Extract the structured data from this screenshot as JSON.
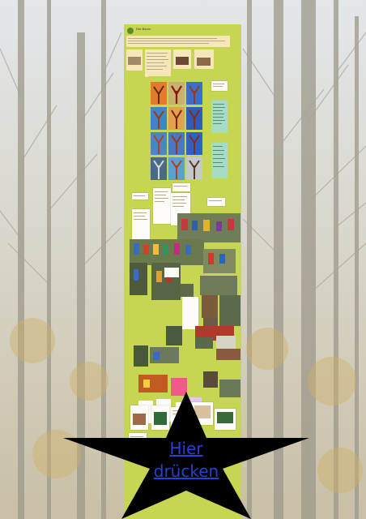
{
  "header": {
    "title": "Der Baum",
    "subtitle": ""
  },
  "cta": {
    "label": "Hier drücken"
  },
  "colors": {
    "padlet_bg": "#c7d652",
    "note_bg": "#f7e6b8",
    "cta_text": "#2a3fd8",
    "star": "#000000"
  }
}
